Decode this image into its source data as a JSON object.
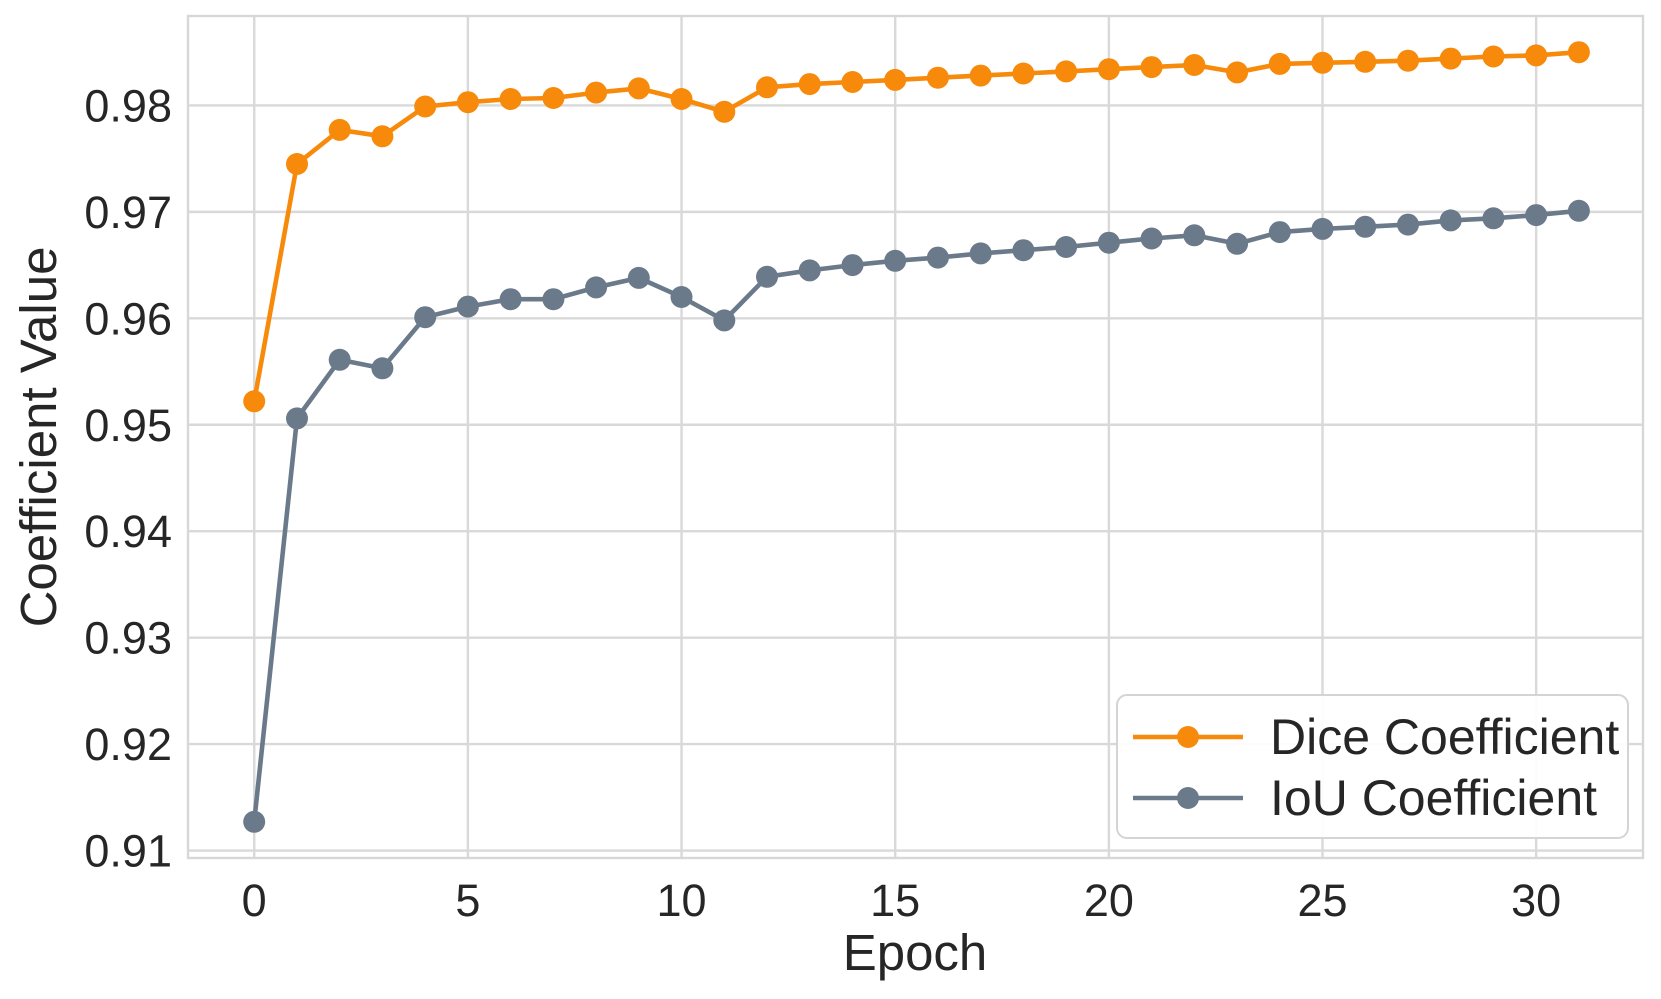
{
  "chart_data": {
    "type": "line",
    "title": "",
    "xlabel": "Epoch",
    "ylabel": "Coefficient Value",
    "x": [
      0,
      1,
      2,
      3,
      4,
      5,
      6,
      7,
      8,
      9,
      10,
      11,
      12,
      13,
      14,
      15,
      16,
      17,
      18,
      19,
      20,
      21,
      22,
      23,
      24,
      25,
      26,
      27,
      28,
      29,
      30,
      31
    ],
    "series": [
      {
        "name": "Dice Coefficient",
        "color": "#F78A0B",
        "values": [
          0.9522,
          0.9745,
          0.9777,
          0.9771,
          0.9799,
          0.9803,
          0.9806,
          0.9807,
          0.9812,
          0.9816,
          0.9806,
          0.9794,
          0.9817,
          0.982,
          0.9822,
          0.9824,
          0.9826,
          0.9828,
          0.983,
          0.9832,
          0.9834,
          0.9836,
          0.9838,
          0.9831,
          0.9839,
          0.984,
          0.9841,
          0.9842,
          0.9844,
          0.9846,
          0.9847,
          0.985
        ]
      },
      {
        "name": "IoU Coefficient",
        "color": "#6B7A8A",
        "values": [
          0.9127,
          0.9506,
          0.9561,
          0.9553,
          0.9601,
          0.9611,
          0.9618,
          0.9618,
          0.9629,
          0.9638,
          0.962,
          0.9598,
          0.9639,
          0.9645,
          0.965,
          0.9654,
          0.9657,
          0.9661,
          0.9664,
          0.9667,
          0.9671,
          0.9675,
          0.9678,
          0.967,
          0.9681,
          0.9684,
          0.9686,
          0.9688,
          0.9692,
          0.9694,
          0.9697,
          0.9701
        ]
      }
    ],
    "xlim": [
      -1.55,
      32.5
    ],
    "ylim": [
      0.9093,
      0.9884
    ],
    "xticks": [
      0,
      5,
      10,
      15,
      20,
      25,
      30
    ],
    "yticks": [
      0.91,
      0.92,
      0.93,
      0.94,
      0.95,
      0.96,
      0.97,
      0.98
    ],
    "grid": true,
    "legend_position": "lower right",
    "colors": {
      "grid": "#D9D9D9",
      "spine": "#D7D7D7",
      "text": "#262626",
      "legend_border": "#D4D4D4",
      "background": "#FFFFFF"
    }
  }
}
